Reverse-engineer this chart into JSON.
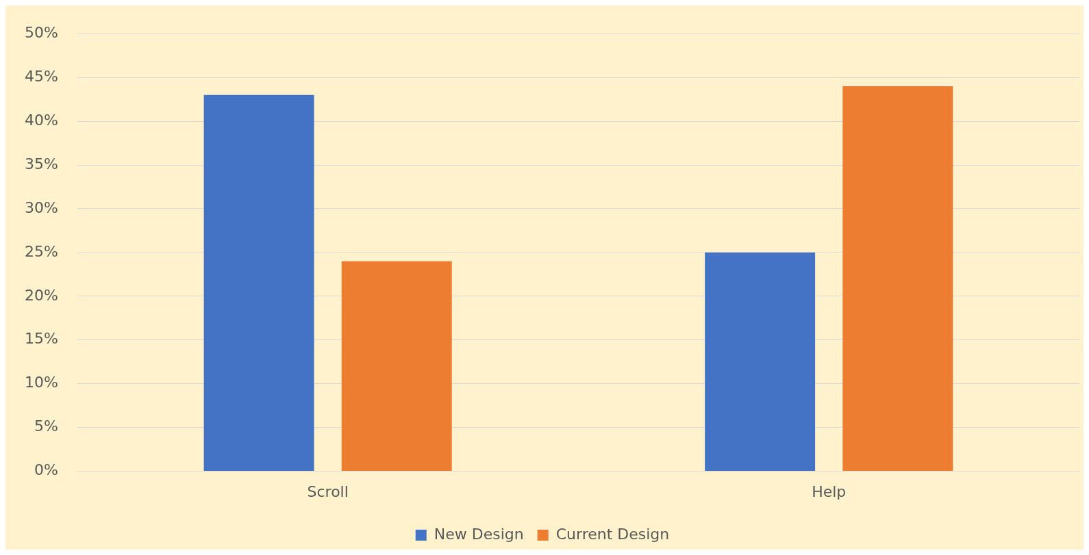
{
  "chart_data": {
    "type": "bar",
    "categories": [
      "Scroll",
      "Help"
    ],
    "series": [
      {
        "name": "New Design",
        "color": "#4472c4",
        "values": [
          43,
          25
        ]
      },
      {
        "name": "Current Design",
        "color": "#ed7d31",
        "values": [
          24,
          44
        ]
      }
    ],
    "ylim": [
      0,
      50
    ],
    "yticks": [
      {
        "value": 0,
        "label": "0%"
      },
      {
        "value": 5,
        "label": "5%"
      },
      {
        "value": 10,
        "label": "10%"
      },
      {
        "value": 15,
        "label": "15%"
      },
      {
        "value": 20,
        "label": "20%"
      },
      {
        "value": 25,
        "label": "25%"
      },
      {
        "value": 30,
        "label": "30%"
      },
      {
        "value": 35,
        "label": "35%"
      },
      {
        "value": 40,
        "label": "40%"
      },
      {
        "value": 45,
        "label": "45%"
      },
      {
        "value": 50,
        "label": "50%"
      }
    ],
    "grid": "y",
    "legend": "bottom"
  }
}
